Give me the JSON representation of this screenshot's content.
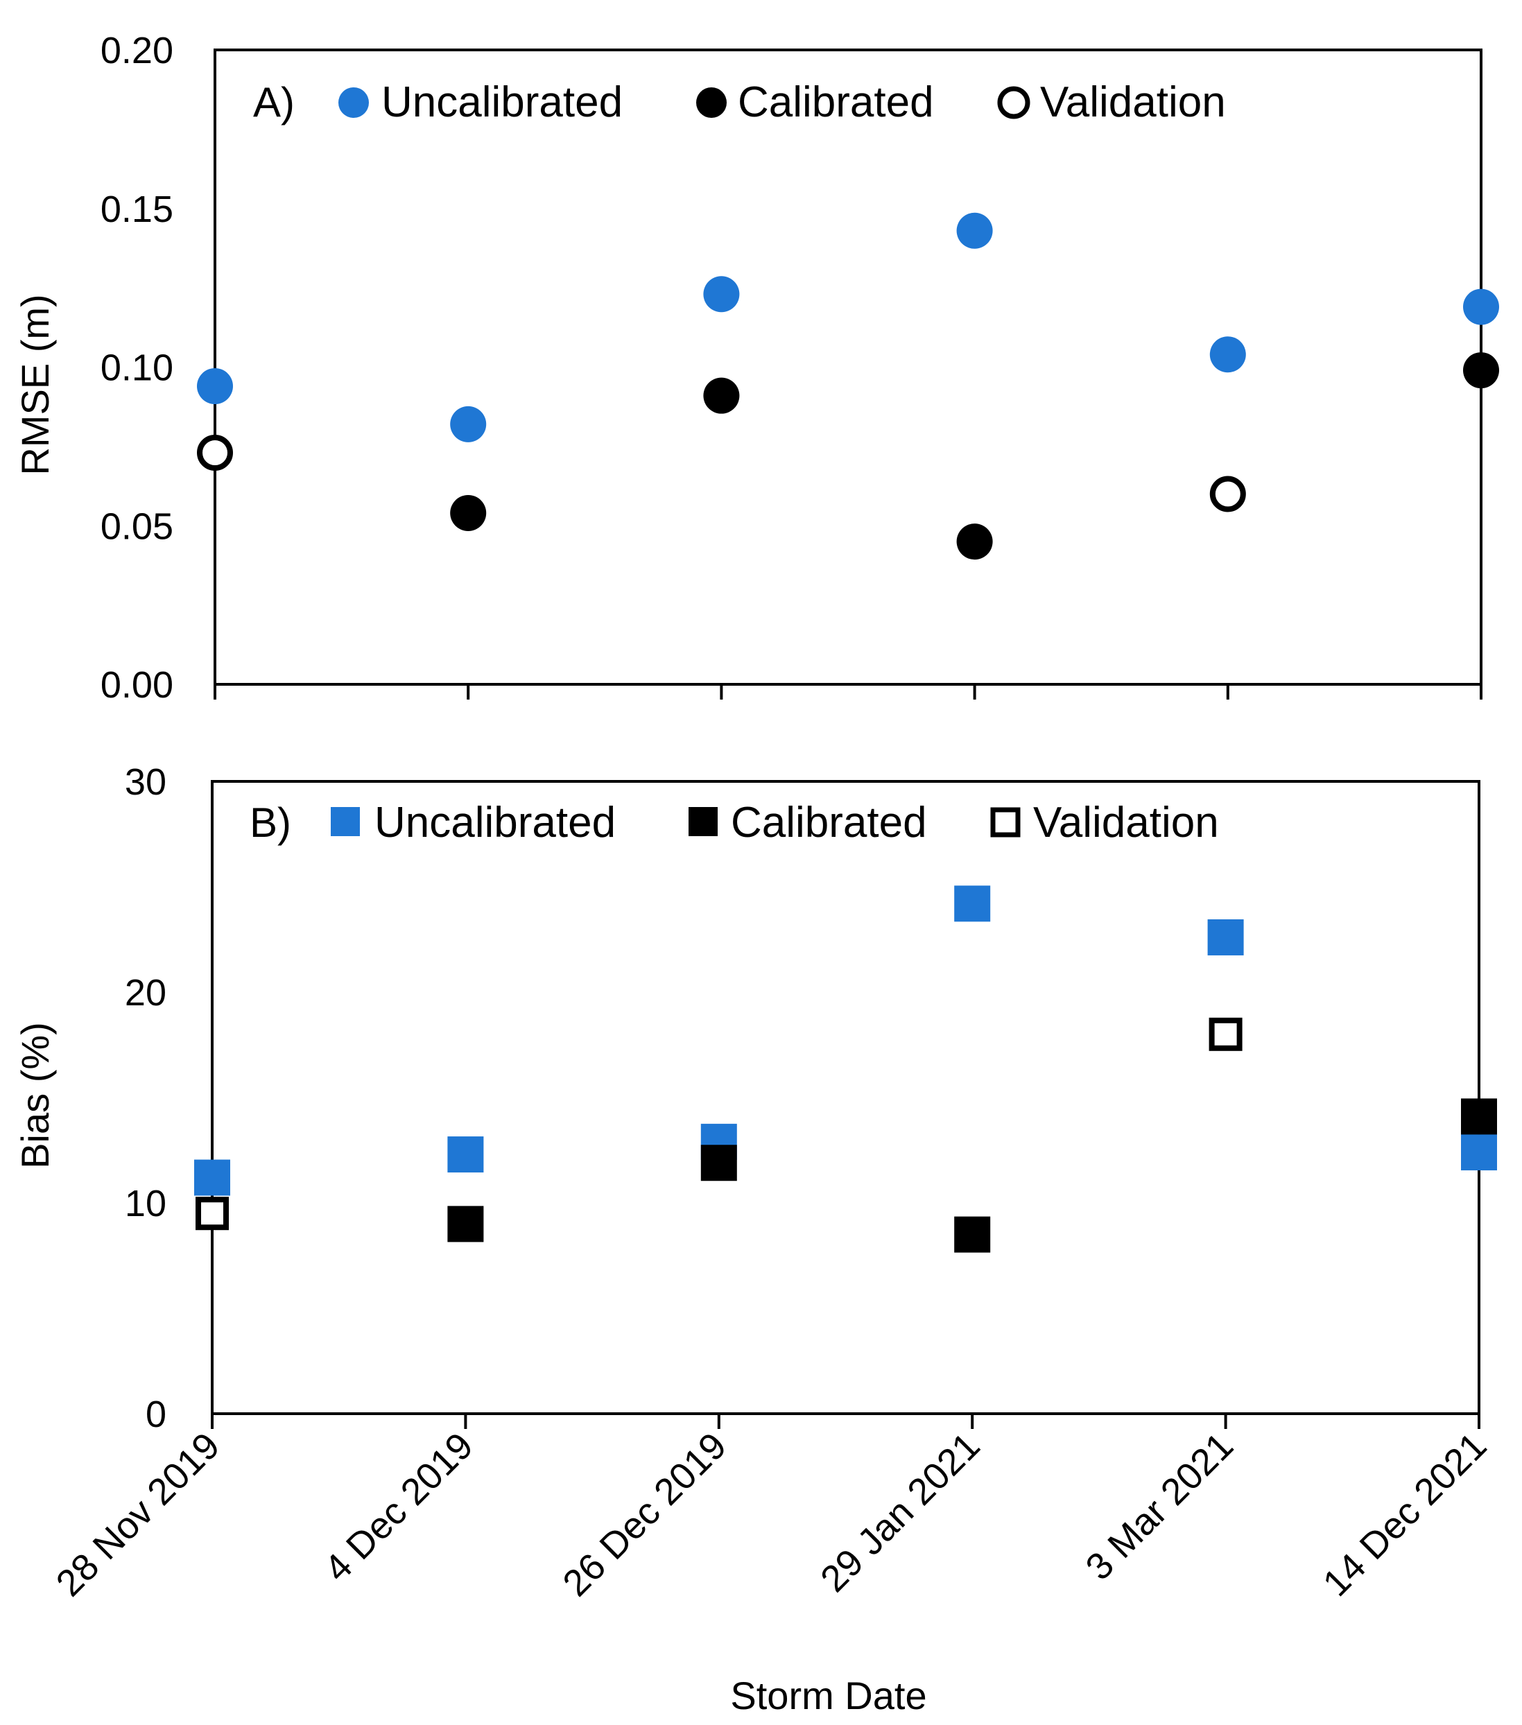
{
  "chart_data": [
    {
      "panel": "A)",
      "type": "scatter",
      "marker": "circle",
      "categories": [
        "28 Nov 2019",
        "4 Dec 2019",
        "26 Dec 2019",
        "29 Jan 2021",
        "3 Mar 2021",
        "14 Dec 2021"
      ],
      "ylabel": "RMSE (m)",
      "ylim": [
        0,
        0.2
      ],
      "yticks": [
        "0.00",
        "0.05",
        "0.10",
        "0.15",
        "0.20"
      ],
      "ytick_values": [
        0,
        0.05,
        0.1,
        0.15,
        0.2
      ],
      "series": [
        {
          "name": "Uncalibrated",
          "style": "filled-blue",
          "values": [
            0.094,
            0.082,
            0.123,
            0.143,
            0.104,
            0.119
          ]
        },
        {
          "name": "Calibrated",
          "style": "filled-black",
          "values": [
            null,
            0.054,
            0.091,
            0.045,
            null,
            0.099
          ]
        },
        {
          "name": "Validation",
          "style": "hollow",
          "values": [
            0.073,
            null,
            null,
            null,
            0.06,
            null
          ]
        }
      ]
    },
    {
      "panel": "B)",
      "type": "scatter",
      "marker": "square",
      "categories": [
        "28 Nov 2019",
        "4 Dec 2019",
        "26 Dec 2019",
        "29 Jan 2021",
        "3 Mar 2021",
        "14 Dec 2021"
      ],
      "ylabel": "Bias (%)",
      "xlabel": "Storm Date",
      "ylim": [
        0,
        30
      ],
      "yticks": [
        "0",
        "10",
        "20",
        "30"
      ],
      "ytick_values": [
        0,
        10,
        20,
        30
      ],
      "series": [
        {
          "name": "Uncalibrated",
          "style": "filled-blue",
          "values": [
            11.2,
            12.3,
            12.9,
            24.2,
            22.6,
            12.4
          ]
        },
        {
          "name": "Calibrated",
          "style": "filled-black",
          "values": [
            null,
            9.0,
            11.9,
            8.5,
            null,
            14.1
          ]
        },
        {
          "name": "Validation",
          "style": "hollow",
          "values": [
            9.5,
            null,
            null,
            null,
            18.0,
            null
          ]
        }
      ]
    }
  ],
  "colors": {
    "uncalibrated": "#1f77d4",
    "calibrated": "#000000",
    "validation_fill": "#ffffff",
    "axis": "#000000"
  }
}
